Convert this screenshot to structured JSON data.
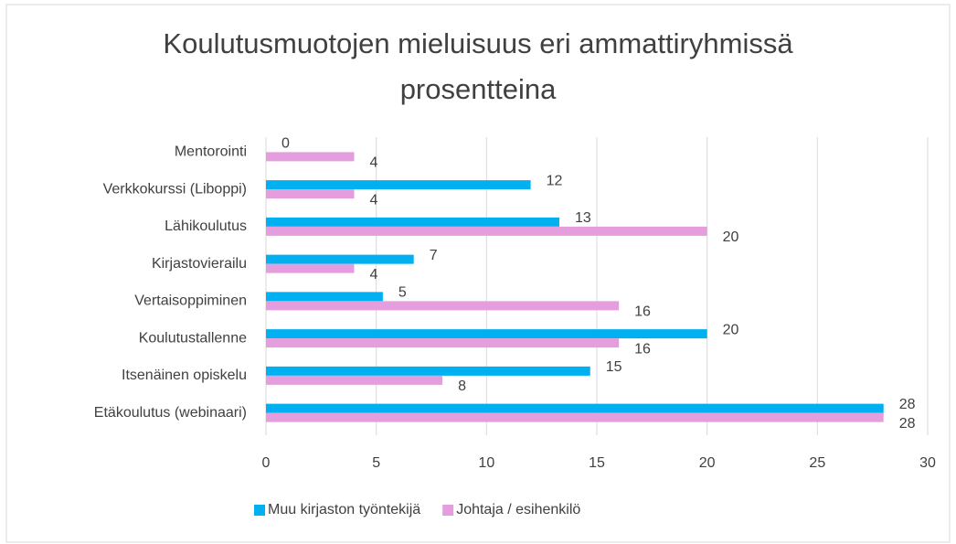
{
  "chart_data": {
    "type": "bar",
    "orientation": "horizontal",
    "title": "Koulutusmuotojen mieluisuus eri ammattiryhmissä prosentteina",
    "categories": [
      "Mentorointi",
      "Verkkokurssi (Liboppi)",
      "Lähikoulutus",
      "Kirjastovierailu",
      "Vertaisoppiminen",
      "Koulutustallenne",
      "Itsenäinen opiskelu",
      "Etäkoulutus (webinaari)"
    ],
    "series": [
      {
        "name": "Muu kirjaston työntekijä",
        "color": "#00b0f0",
        "values": [
          0,
          12,
          13.3,
          6.7,
          5.3,
          20,
          14.7,
          28
        ],
        "value_labels": [
          "0",
          "12",
          "13",
          "7",
          "5",
          "20",
          "15",
          "28"
        ]
      },
      {
        "name": "Johtaja / esihenkilö",
        "color": "#e59edd",
        "values": [
          4,
          4,
          20,
          4,
          16,
          16,
          8,
          28
        ]
      }
    ],
    "xlim": [
      0,
      30
    ],
    "xticks": [
      0,
      5,
      10,
      15,
      20,
      25,
      30
    ],
    "grid": true,
    "legend": "bottom"
  }
}
